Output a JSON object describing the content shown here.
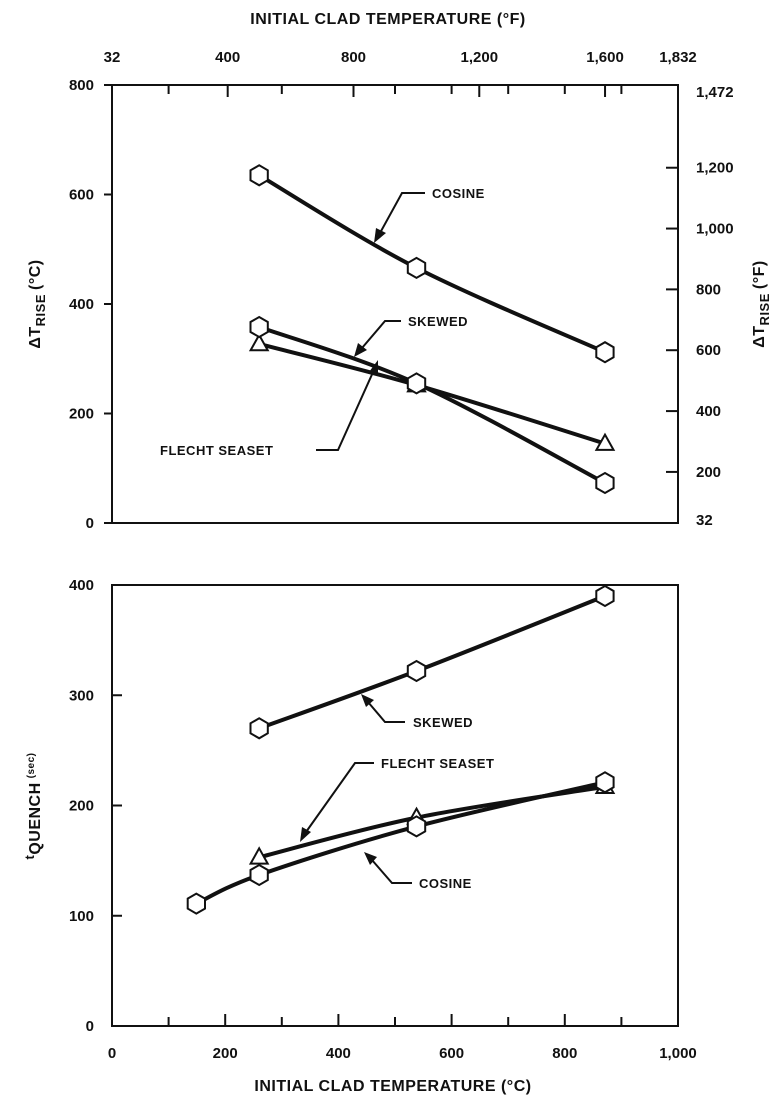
{
  "chart_data": [
    {
      "type": "line",
      "id": "temperature-rise",
      "top_axis": {
        "title": "INITIAL CLAD TEMPERATURE (°F)",
        "ticks": [
          {
            "label": "32",
            "c": 0
          },
          {
            "label": "400",
            "c": 204.4
          },
          {
            "label": "800",
            "c": 426.7
          },
          {
            "label": "1,200",
            "c": 648.9
          },
          {
            "label": "1,600",
            "c": 871.1
          },
          {
            "label": "1,832",
            "c": 1000
          }
        ]
      },
      "y_left": {
        "title": "ΔT RISE (°C)",
        "title_main": "ΔT",
        "title_sub": "RISE",
        "title_unit": "(°C)",
        "range": [
          0,
          800
        ],
        "ticks": [
          0,
          200,
          400,
          600,
          800
        ]
      },
      "y_right": {
        "title": "ΔT RISE (°F)",
        "title_main": "ΔT",
        "title_sub": "RISE",
        "title_unit": "(°F)",
        "ticks": [
          {
            "label": "32",
            "c": 0
          },
          {
            "label": "200",
            "c": 93.3
          },
          {
            "label": "400",
            "c": 204.4
          },
          {
            "label": "600",
            "c": 315.6
          },
          {
            "label": "800",
            "c": 426.7
          },
          {
            "label": "1,000",
            "c": 537.8
          },
          {
            "label": "1,200",
            "c": 648.9
          },
          {
            "label": "1,472",
            "c": 800
          }
        ]
      },
      "series": [
        {
          "name": "COSINE",
          "marker": "hexagon",
          "x": [
            260,
            538,
            871
          ],
          "y": [
            635,
            466,
            312
          ]
        },
        {
          "name": "SKEWED",
          "marker": "hexagon",
          "x": [
            260,
            538,
            871
          ],
          "y": [
            358,
            255,
            73
          ]
        },
        {
          "name": "FLECHT SEASET",
          "marker": "triangle",
          "x": [
            260,
            538,
            871
          ],
          "y": [
            327,
            252,
            145
          ]
        }
      ]
    },
    {
      "type": "line",
      "id": "quench-time",
      "x_axis": {
        "title": "INITIAL CLAD TEMPERATURE (°C)",
        "range": [
          0,
          1000
        ],
        "ticks": [
          0,
          200,
          400,
          600,
          800,
          1000
        ],
        "tick_labels": [
          "0",
          "200",
          "400",
          "600",
          "800",
          "1,000"
        ]
      },
      "y_axis": {
        "title": "tQUENCH (sec)",
        "title_main": "t",
        "title_sub": "QUENCH",
        "title_unit": "(sec)",
        "range": [
          0,
          400
        ],
        "ticks": [
          0,
          100,
          200,
          300,
          400
        ]
      },
      "series": [
        {
          "name": "SKEWED",
          "marker": "hexagon",
          "x": [
            260,
            538,
            871
          ],
          "y": [
            270,
            322,
            390
          ]
        },
        {
          "name": "FLECHT SEASET",
          "marker": "triangle",
          "x": [
            260,
            538,
            871
          ],
          "y": [
            153,
            189,
            217
          ]
        },
        {
          "name": "COSINE",
          "marker": "hexagon",
          "x": [
            149,
            260,
            538,
            871
          ],
          "y": [
            111,
            137,
            181,
            221
          ]
        }
      ]
    }
  ]
}
